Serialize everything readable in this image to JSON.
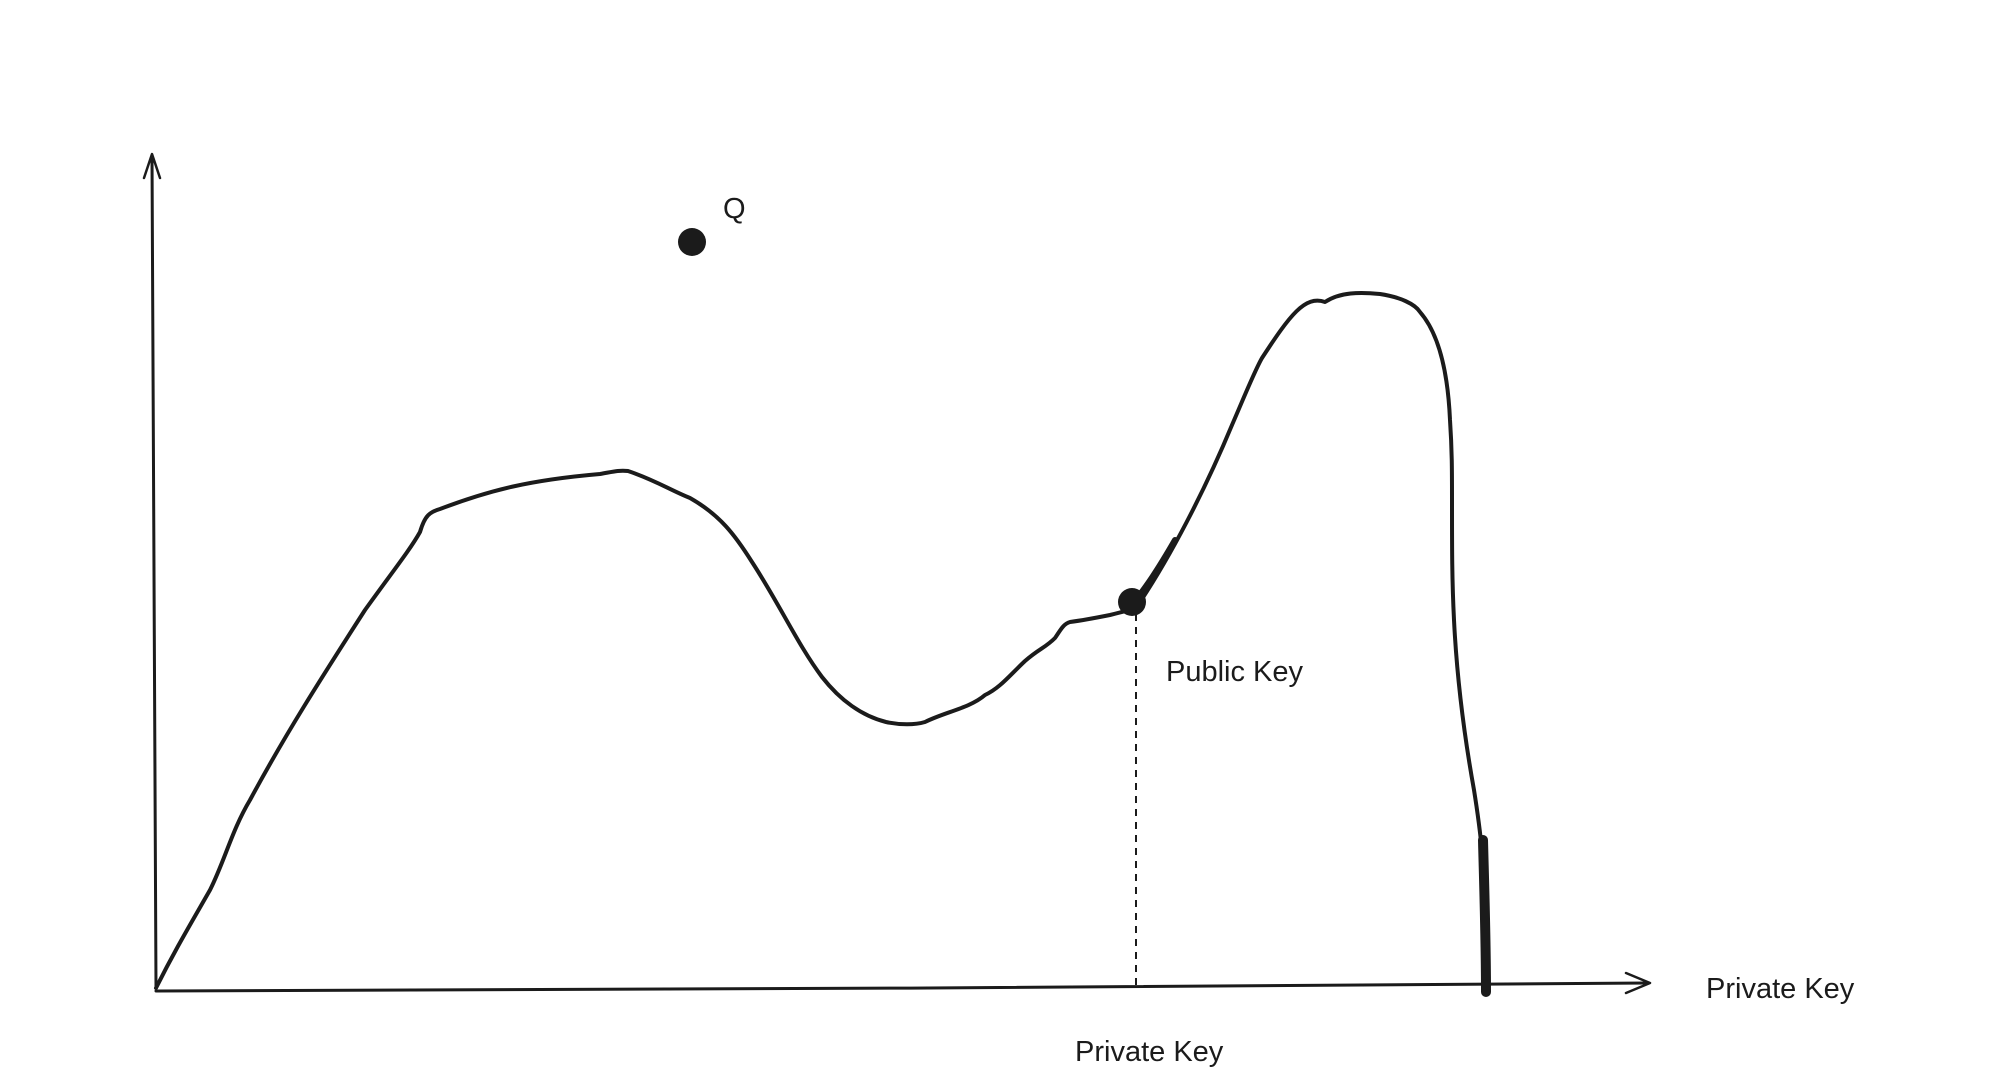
{
  "diagram": {
    "point_label": "Q",
    "curve_point_label": "Public Key",
    "x_axis_label": "Private Key",
    "drop_line_label": "Private Key"
  },
  "colors": {
    "ink": "#1b1b1b",
    "background": "#ffffff"
  }
}
